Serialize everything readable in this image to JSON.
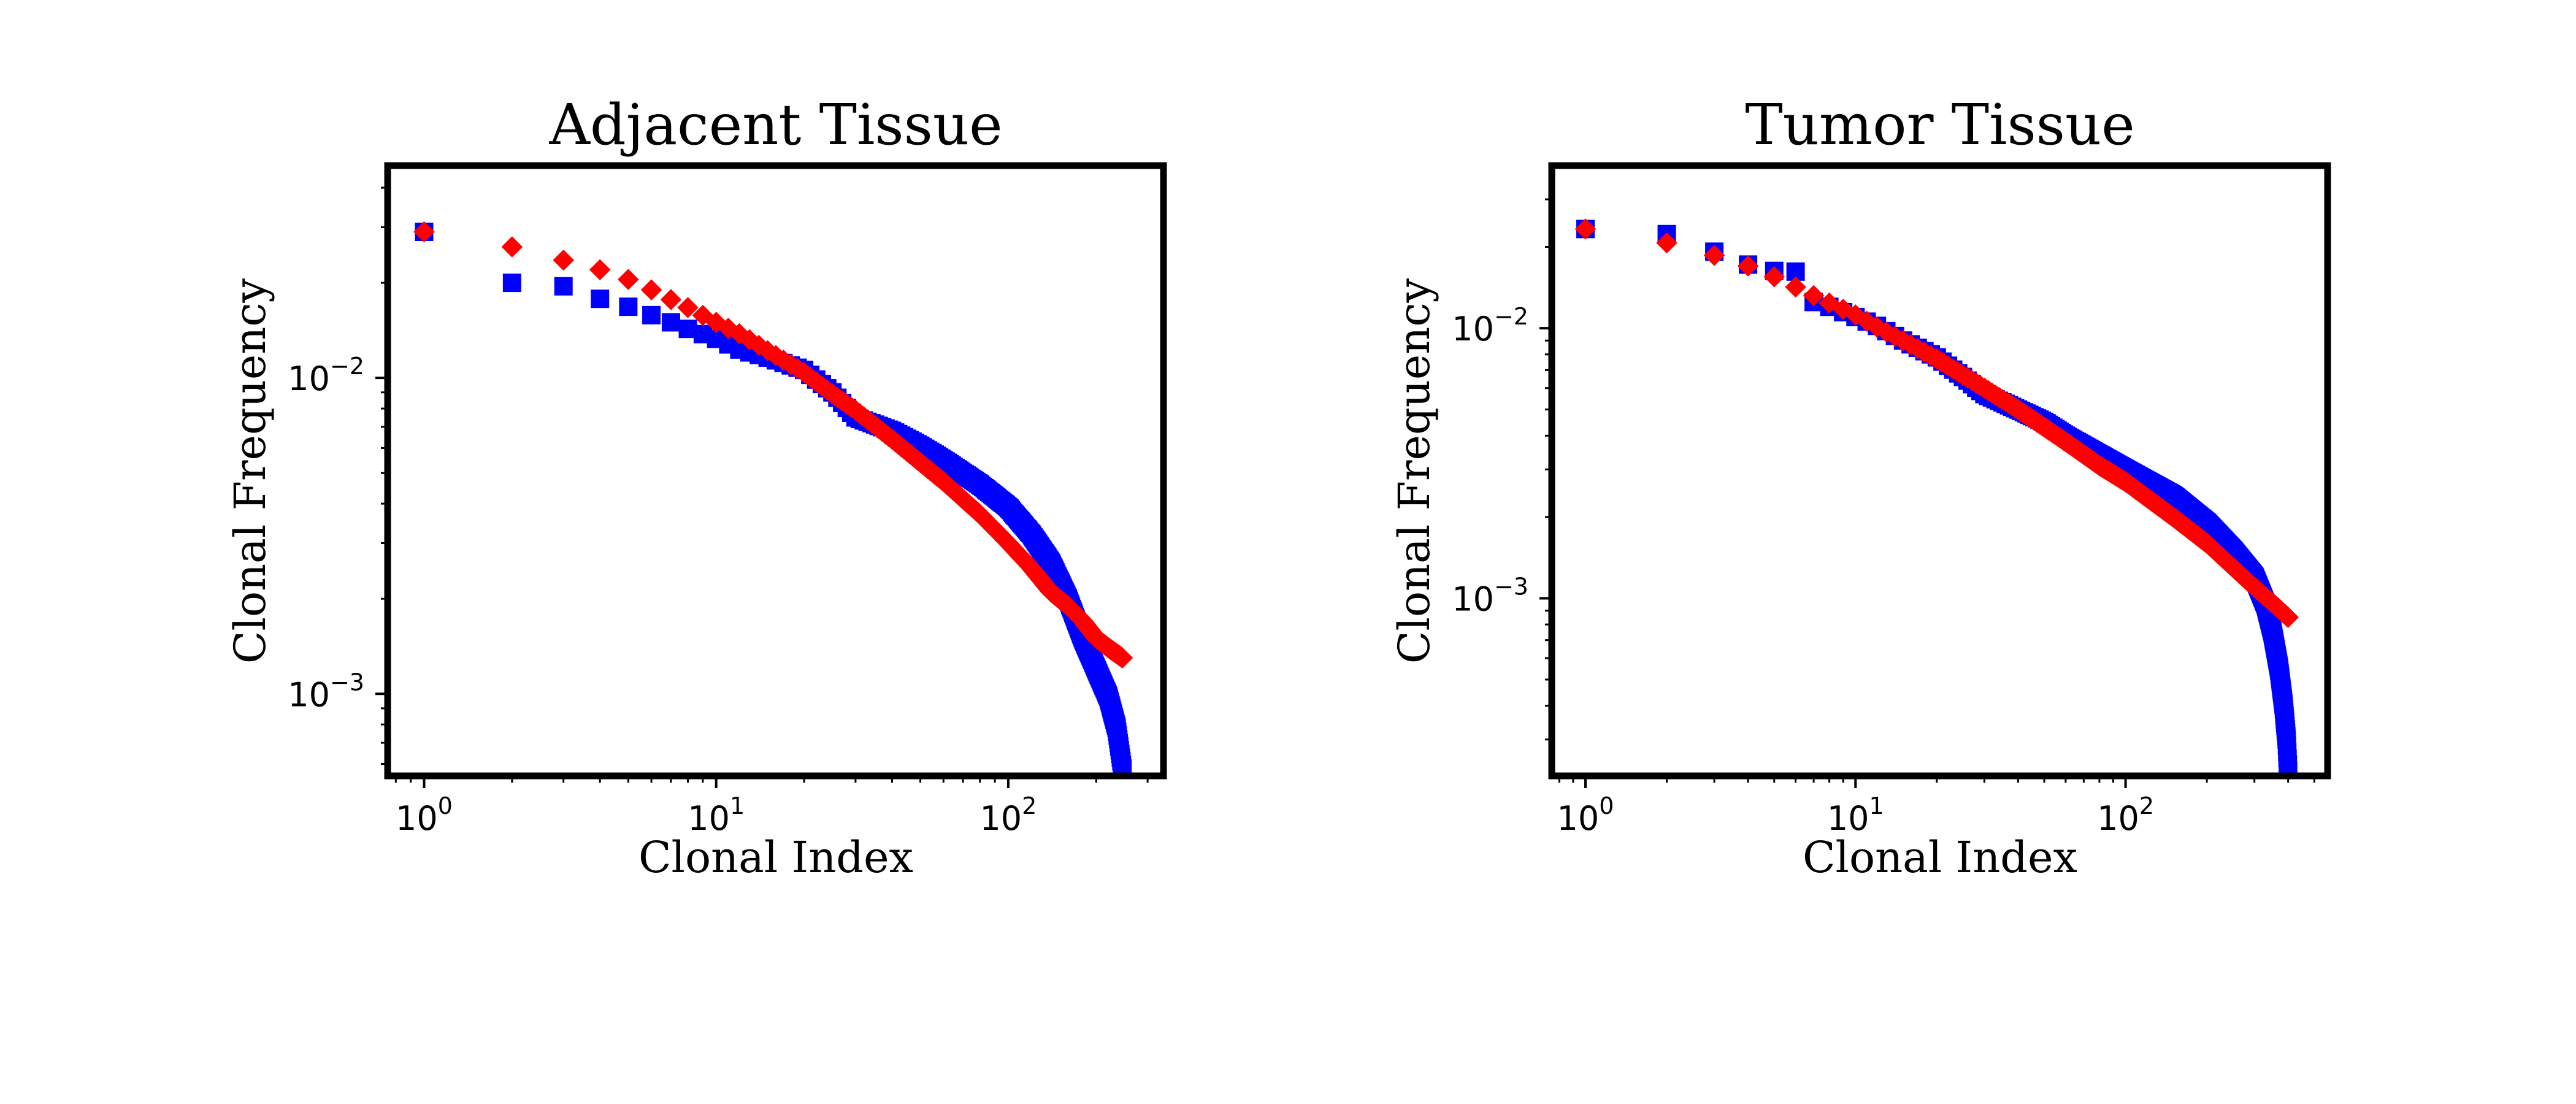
{
  "colors": {
    "observed": "#0000ff",
    "fit": "#ff0000",
    "frame": "#000000"
  },
  "chart_data": [
    {
      "type": "scatter",
      "title": "Adjacent Tissue",
      "xlabel": "Clonal Index",
      "ylabel": "Clonal Frequency",
      "xscale": "log",
      "yscale": "log",
      "xlim": [
        0.75,
        340
      ],
      "ylim": [
        0.00055,
        0.047
      ],
      "grid": false,
      "legend": "none",
      "x_ticks": [
        {
          "value": 1,
          "base": "10",
          "exp": "0"
        },
        {
          "value": 10,
          "base": "10",
          "exp": "1"
        },
        {
          "value": 100,
          "base": "10",
          "exp": "2"
        }
      ],
      "y_ticks": [
        {
          "value": 0.01,
          "base": "10",
          "exp": "−2"
        },
        {
          "value": 0.001,
          "base": "10",
          "exp": "−3"
        }
      ],
      "series": [
        {
          "marker": "square",
          "color": "#0000ff",
          "total_points": 246,
          "x": [
            1,
            2,
            3,
            4,
            5,
            6,
            7,
            8,
            10,
            12,
            15,
            20,
            25,
            30,
            40,
            50,
            60,
            80,
            100,
            120,
            140,
            160,
            180,
            200,
            220,
            235,
            246
          ],
          "y": [
            0.029,
            0.02,
            0.0195,
            0.0178,
            0.0168,
            0.0158,
            0.015,
            0.0143,
            0.0133,
            0.0123,
            0.0116,
            0.0106,
            0.009,
            0.0075,
            0.0068,
            0.0061,
            0.0055,
            0.0046,
            0.0039,
            0.0032,
            0.0026,
            0.002,
            0.0015,
            0.0012,
            0.00098,
            0.00078,
            0.00058
          ]
        },
        {
          "marker": "diamond",
          "color": "#ff0000",
          "total_points": 246,
          "x": [
            1,
            2,
            3,
            4,
            5,
            6,
            7,
            8,
            10,
            12,
            15,
            20,
            25,
            30,
            40,
            50,
            60,
            80,
            100,
            120,
            140,
            160,
            180,
            200,
            220,
            246
          ],
          "y": [
            0.029,
            0.026,
            0.0236,
            0.022,
            0.0205,
            0.019,
            0.0177,
            0.0167,
            0.015,
            0.0138,
            0.0122,
            0.0104,
            0.0089,
            0.0079,
            0.0064,
            0.0054,
            0.0047,
            0.0037,
            0.003,
            0.0025,
            0.0021,
            0.0019,
            0.0017,
            0.0015,
            0.0014,
            0.0013
          ]
        }
      ]
    },
    {
      "type": "scatter",
      "title": "Tumor Tissue",
      "xlabel": "Clonal Index",
      "ylabel": "Clonal Frequency",
      "xscale": "log",
      "yscale": "log",
      "xlim": [
        0.75,
        560
      ],
      "ylim": [
        0.00022,
        0.04
      ],
      "grid": false,
      "legend": "none",
      "x_ticks": [
        {
          "value": 1,
          "base": "10",
          "exp": "0"
        },
        {
          "value": 10,
          "base": "10",
          "exp": "1"
        },
        {
          "value": 100,
          "base": "10",
          "exp": "2"
        }
      ],
      "y_ticks": [
        {
          "value": 0.01,
          "base": "10",
          "exp": "−2"
        },
        {
          "value": 0.001,
          "base": "10",
          "exp": "−3"
        }
      ],
      "series": [
        {
          "marker": "square",
          "color": "#0000ff",
          "total_points": 400,
          "x": [
            1,
            2,
            3,
            4,
            5,
            6,
            7,
            8,
            10,
            12,
            15,
            20,
            25,
            30,
            40,
            50,
            60,
            80,
            100,
            150,
            200,
            250,
            300,
            330,
            350,
            370,
            385,
            395,
            400
          ],
          "y": [
            0.0233,
            0.0223,
            0.0192,
            0.0172,
            0.0163,
            0.0162,
            0.0125,
            0.012,
            0.011,
            0.0102,
            0.009,
            0.0078,
            0.0066,
            0.0057,
            0.005,
            0.0045,
            0.004,
            0.0034,
            0.003,
            0.0024,
            0.0019,
            0.0015,
            0.0012,
            0.00095,
            0.00075,
            0.00055,
            0.0004,
            0.0003,
            0.00023
          ]
        },
        {
          "marker": "diamond",
          "color": "#ff0000",
          "total_points": 400,
          "x": [
            1,
            2,
            3,
            4,
            5,
            6,
            7,
            8,
            10,
            12,
            15,
            20,
            25,
            30,
            40,
            50,
            60,
            80,
            100,
            150,
            200,
            250,
            300,
            350,
            400
          ],
          "y": [
            0.0233,
            0.0207,
            0.0186,
            0.017,
            0.0155,
            0.0142,
            0.0132,
            0.0124,
            0.0112,
            0.0101,
            0.009,
            0.0077,
            0.0067,
            0.006,
            0.005,
            0.0043,
            0.0038,
            0.0031,
            0.0027,
            0.002,
            0.0016,
            0.0013,
            0.0011,
            0.00096,
            0.00085
          ]
        }
      ]
    }
  ]
}
